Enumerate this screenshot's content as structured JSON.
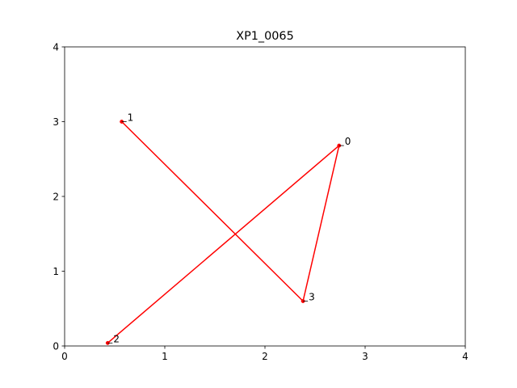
{
  "chart_data": {
    "type": "line",
    "title": "XP1_0065",
    "xlabel": "",
    "ylabel": "",
    "xlim": [
      0,
      4
    ],
    "ylim": [
      0,
      4
    ],
    "xticks": [
      "0",
      "1",
      "2",
      "3",
      "4"
    ],
    "yticks": [
      "0",
      "1",
      "2",
      "3",
      "4"
    ],
    "grid": false,
    "line_color": "#ff0000",
    "points": [
      {
        "label": "0",
        "x": 2.74,
        "y": 2.68
      },
      {
        "label": "1",
        "x": 0.57,
        "y": 3.0
      },
      {
        "label": "2",
        "x": 0.43,
        "y": 0.04
      },
      {
        "label": "3",
        "x": 2.38,
        "y": 0.6
      }
    ],
    "path_order": [
      "1",
      "3",
      "0",
      "2"
    ]
  }
}
